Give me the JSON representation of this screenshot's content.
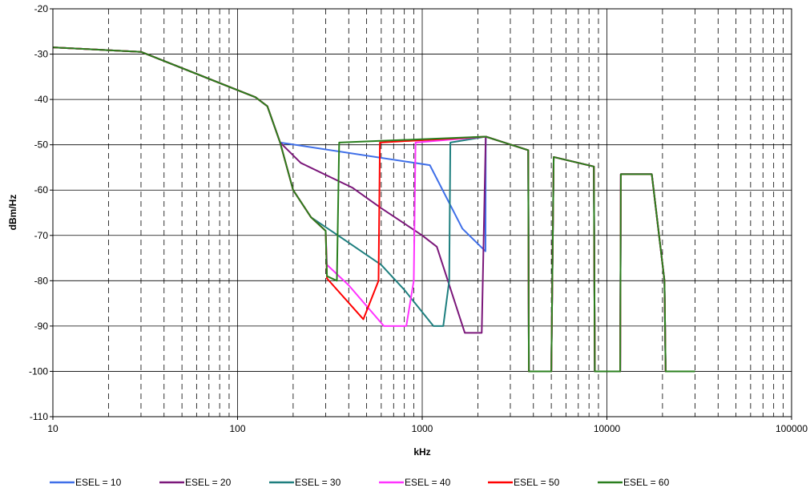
{
  "chart_data": {
    "type": "line",
    "xscale": "log",
    "xlim": [
      10,
      100000
    ],
    "ylim": [
      -110,
      -20
    ],
    "xlabel": "kHz",
    "ylabel": "dBm/Hz",
    "x_tick_labels": [
      "10",
      "100",
      "1000",
      "10000",
      "100000"
    ],
    "y_tick_labels": [
      "-20",
      "-30",
      "-40",
      "-50",
      "-60",
      "-70",
      "-80",
      "-90",
      "-100",
      "-110"
    ],
    "grid": {
      "horizontal": "solid",
      "vertical_major": "solid",
      "vertical_minor": "dashed"
    },
    "legend_position": "bottom",
    "series": [
      {
        "name": "ESEL = 10",
        "color": "#3F6FE8",
        "points": [
          [
            10,
            -28.5
          ],
          [
            30,
            -29.5
          ],
          [
            125,
            -39.5
          ],
          [
            145,
            -41.5
          ],
          [
            170,
            -49.5
          ],
          [
            1100,
            -54.5
          ],
          [
            1650,
            -68.5
          ],
          [
            2200,
            -73.5
          ],
          [
            2208,
            -48.2
          ],
          [
            3750,
            -51.2
          ],
          [
            3780,
            -100
          ],
          [
            5000,
            -100
          ],
          [
            5150,
            -52.7
          ],
          [
            8500,
            -54.8
          ],
          [
            8600,
            -100
          ],
          [
            11800,
            -100
          ],
          [
            11900,
            -56.5
          ],
          [
            17500,
            -56.5
          ],
          [
            20500,
            -80
          ],
          [
            20800,
            -100
          ],
          [
            30000,
            -100
          ]
        ]
      },
      {
        "name": "ESEL = 20",
        "color": "#7B177A",
        "points": [
          [
            10,
            -28.5
          ],
          [
            30,
            -29.5
          ],
          [
            125,
            -39.5
          ],
          [
            145,
            -41.5
          ],
          [
            170,
            -49.5
          ],
          [
            220,
            -54
          ],
          [
            420,
            -59.5
          ],
          [
            600,
            -64
          ],
          [
            1000,
            -70
          ],
          [
            1200,
            -72.5
          ],
          [
            1700,
            -91.5
          ],
          [
            2100,
            -91.5
          ],
          [
            2208,
            -48.2
          ],
          [
            3750,
            -51.2
          ],
          [
            3780,
            -100
          ],
          [
            5000,
            -100
          ],
          [
            5150,
            -52.7
          ],
          [
            8500,
            -54.8
          ],
          [
            8600,
            -100
          ],
          [
            11800,
            -100
          ],
          [
            11900,
            -56.5
          ],
          [
            17500,
            -56.5
          ],
          [
            20500,
            -80
          ],
          [
            20800,
            -100
          ],
          [
            30000,
            -100
          ]
        ]
      },
      {
        "name": "ESEL = 30",
        "color": "#1E7F7F",
        "points": [
          [
            10,
            -28.5
          ],
          [
            30,
            -29.5
          ],
          [
            125,
            -39.5
          ],
          [
            145,
            -41.5
          ],
          [
            170,
            -49.5
          ],
          [
            200,
            -60
          ],
          [
            250,
            -66
          ],
          [
            350,
            -70
          ],
          [
            600,
            -76.5
          ],
          [
            800,
            -82
          ],
          [
            1150,
            -90
          ],
          [
            1300,
            -90
          ],
          [
            1400,
            -80
          ],
          [
            1420,
            -49.5
          ],
          [
            2208,
            -48.2
          ],
          [
            3750,
            -51.2
          ],
          [
            3780,
            -100
          ],
          [
            5000,
            -100
          ],
          [
            5150,
            -52.7
          ],
          [
            8500,
            -54.8
          ],
          [
            8600,
            -100
          ],
          [
            11800,
            -100
          ],
          [
            11900,
            -56.5
          ],
          [
            17500,
            -56.5
          ],
          [
            20500,
            -80
          ],
          [
            20800,
            -100
          ],
          [
            30000,
            -100
          ]
        ]
      },
      {
        "name": "ESEL = 40",
        "color": "#FF33FF",
        "points": [
          [
            10,
            -28.5
          ],
          [
            30,
            -29.5
          ],
          [
            125,
            -39.5
          ],
          [
            145,
            -41.5
          ],
          [
            170,
            -49.5
          ],
          [
            200,
            -60
          ],
          [
            250,
            -66
          ],
          [
            300,
            -69
          ],
          [
            305,
            -76.5
          ],
          [
            400,
            -81
          ],
          [
            620,
            -90
          ],
          [
            820,
            -90
          ],
          [
            900,
            -80
          ],
          [
            920,
            -49.5
          ],
          [
            2208,
            -48.2
          ],
          [
            3750,
            -51.2
          ],
          [
            3780,
            -100
          ],
          [
            5000,
            -100
          ],
          [
            5150,
            -52.7
          ],
          [
            8500,
            -54.8
          ],
          [
            8600,
            -100
          ],
          [
            11800,
            -100
          ],
          [
            11900,
            -56.5
          ],
          [
            17500,
            -56.5
          ],
          [
            20500,
            -80
          ],
          [
            20800,
            -100
          ],
          [
            30000,
            -100
          ]
        ]
      },
      {
        "name": "ESEL = 50",
        "color": "#FF0000",
        "points": [
          [
            10,
            -28.5
          ],
          [
            30,
            -29.5
          ],
          [
            125,
            -39.5
          ],
          [
            145,
            -41.5
          ],
          [
            170,
            -49.5
          ],
          [
            200,
            -60
          ],
          [
            250,
            -66
          ],
          [
            300,
            -69
          ],
          [
            305,
            -79.5
          ],
          [
            480,
            -88.5
          ],
          [
            580,
            -80
          ],
          [
            590,
            -49.5
          ],
          [
            2208,
            -48.2
          ],
          [
            3750,
            -51.2
          ],
          [
            3780,
            -100
          ],
          [
            5000,
            -100
          ],
          [
            5150,
            -52.7
          ],
          [
            8500,
            -54.8
          ],
          [
            8600,
            -100
          ],
          [
            11800,
            -100
          ],
          [
            11900,
            -56.5
          ],
          [
            17500,
            -56.5
          ],
          [
            20500,
            -80
          ],
          [
            20800,
            -100
          ],
          [
            30000,
            -100
          ]
        ]
      },
      {
        "name": "ESEL = 60",
        "color": "#2A7F1E",
        "points": [
          [
            10,
            -28.5
          ],
          [
            30,
            -29.5
          ],
          [
            125,
            -39.5
          ],
          [
            145,
            -41.5
          ],
          [
            170,
            -49.5
          ],
          [
            200,
            -60
          ],
          [
            250,
            -66
          ],
          [
            300,
            -69
          ],
          [
            305,
            -79
          ],
          [
            345,
            -80
          ],
          [
            355,
            -49.5
          ],
          [
            2208,
            -48.2
          ],
          [
            3750,
            -51.2
          ],
          [
            3780,
            -100
          ],
          [
            5000,
            -100
          ],
          [
            5150,
            -52.7
          ],
          [
            8500,
            -54.8
          ],
          [
            8600,
            -100
          ],
          [
            11800,
            -100
          ],
          [
            11900,
            -56.5
          ],
          [
            17500,
            -56.5
          ],
          [
            20500,
            -80
          ],
          [
            20800,
            -100
          ],
          [
            30000,
            -100
          ]
        ]
      }
    ]
  }
}
